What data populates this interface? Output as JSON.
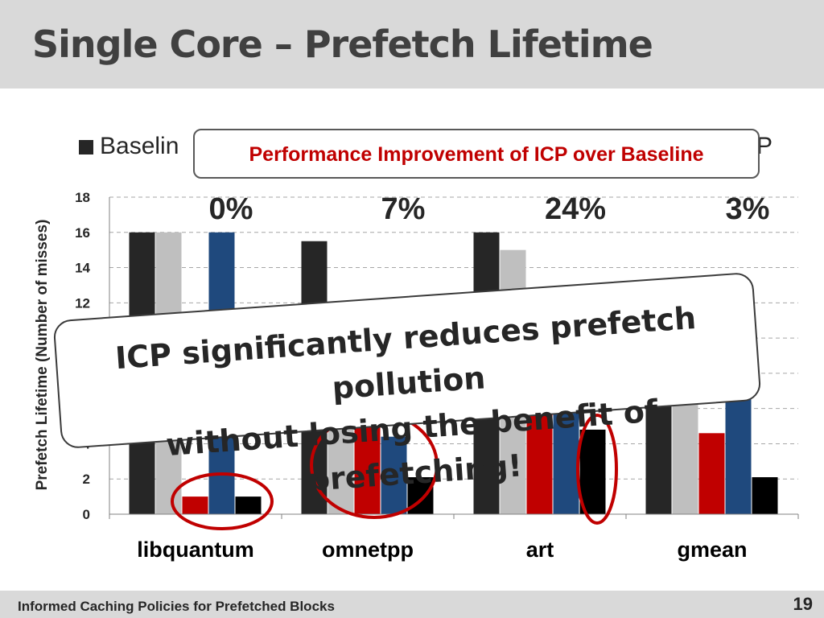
{
  "slide": {
    "title": "Single Core – Prefetch Lifetime",
    "footer": "Informed Caching Policies for Prefetched Blocks",
    "page_number": "19"
  },
  "legend": {
    "first_label_visible": "Baselin",
    "last_label_visible": "P"
  },
  "perf_box": {
    "text": "Performance Improvement of ICP over Baseline",
    "improvements": [
      "0%",
      "7%",
      "24%",
      "3%"
    ]
  },
  "callout": {
    "line1": "ICP significantly reduces prefetch pollution",
    "line2": "without losing the benefit of prefetching!"
  },
  "colors": {
    "series": [
      "#262626",
      "#bfbfbf",
      "#c00000",
      "#1f497d",
      "#000000"
    ],
    "accent_red": "#c00000",
    "header_bg": "#d9d9d9"
  },
  "chart_data": {
    "type": "bar",
    "ylabel": "Prefetch Lifetime (Number of misses)",
    "ylim": [
      0,
      18
    ],
    "yticks": [
      0,
      2,
      4,
      6,
      8,
      10,
      12,
      14,
      16,
      18
    ],
    "grid": true,
    "categories": [
      "libquantum",
      "omnetpp",
      "art",
      "gmean"
    ],
    "series": [
      {
        "values": [
          16,
          15.5,
          16,
          9
        ]
      },
      {
        "values": [
          16,
          5,
          15,
          8
        ]
      },
      {
        "values": [
          1,
          8,
          6,
          4.6
        ]
      },
      {
        "values": [
          16,
          4.4,
          8,
          8
        ]
      },
      {
        "values": [
          1,
          2.1,
          4.8,
          2.1
        ]
      }
    ]
  }
}
